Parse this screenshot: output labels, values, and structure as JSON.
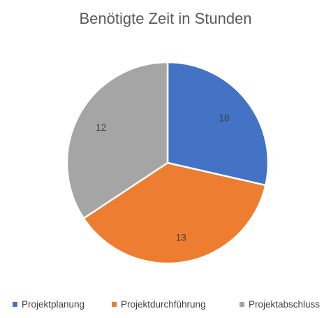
{
  "chart_data": {
    "type": "pie",
    "title": "Benötigte Zeit in Stunden",
    "categories": [
      "Projektplanung",
      "Projektdurchführung",
      "Projektabschluss"
    ],
    "values": [
      10,
      13,
      12
    ],
    "colors": [
      "#4472C4",
      "#ED7D31",
      "#A5A5A5"
    ],
    "data_labels": [
      "10",
      "13",
      "12"
    ],
    "legend_position": "bottom"
  }
}
